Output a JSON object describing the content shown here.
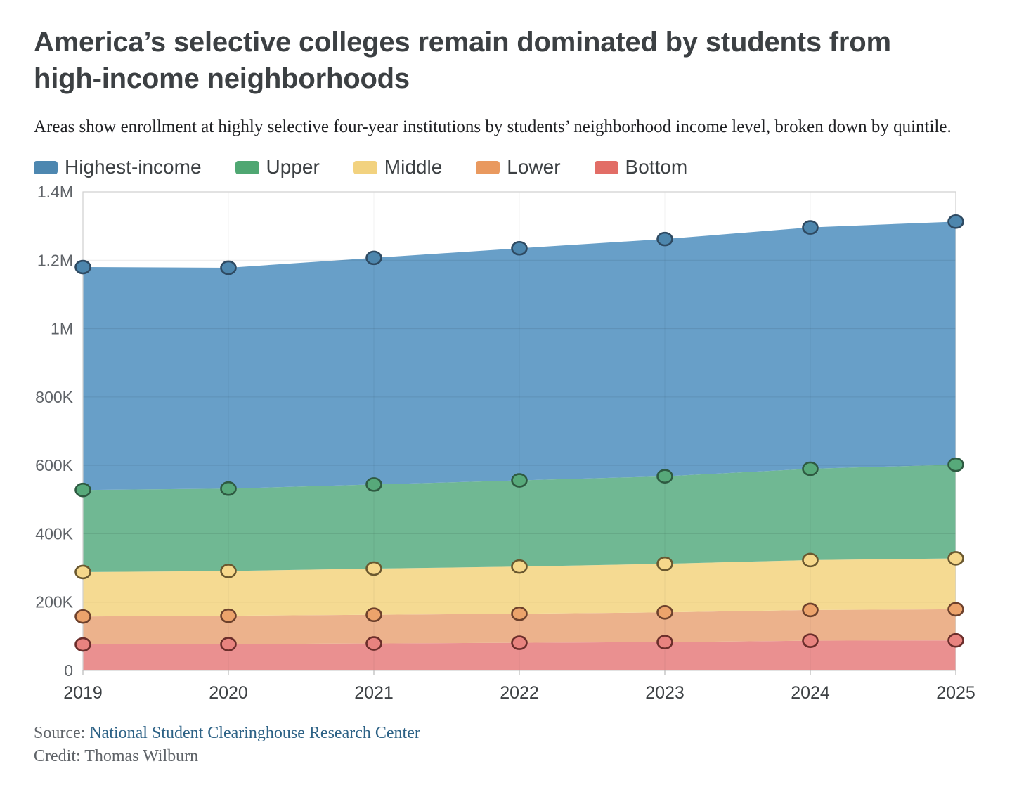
{
  "chart_data": {
    "type": "area",
    "stacked": true,
    "title": "America’s selective colleges remain dominated by students from high-income neighborhoods",
    "subtitle": "Areas show enrollment at highly selective four-year institutions by students’ neighborhood income level, broken down by quintile.",
    "x": [
      2019,
      2020,
      2021,
      2022,
      2023,
      2024,
      2025
    ],
    "series": [
      {
        "name": "Highest-income",
        "color": "#689fc8",
        "swatch": "#4d87b0",
        "dot_fill": "#4d86ad",
        "dot_stroke": "#2e4a62",
        "values": [
          652000,
          646000,
          663000,
          679000,
          694000,
          706000,
          711000
        ],
        "cumulative_top": [
          1180000,
          1178000,
          1207000,
          1235000,
          1262000,
          1296000,
          1313000
        ]
      },
      {
        "name": "Upper",
        "color": "#70b893",
        "swatch": "#4fa772",
        "dot_fill": "#57a97a",
        "dot_stroke": "#2e5a41",
        "values": [
          240000,
          241000,
          246000,
          252000,
          256000,
          267000,
          274000
        ],
        "cumulative_top": [
          528000,
          532000,
          544000,
          556000,
          568000,
          590000,
          602000
        ]
      },
      {
        "name": "Middle",
        "color": "#f5da92",
        "swatch": "#f2d27f",
        "dot_fill": "#f6d88b",
        "dot_stroke": "#6a582f",
        "values": [
          130000,
          131000,
          135000,
          138000,
          142000,
          146000,
          149000
        ],
        "cumulative_top": [
          288000,
          291000,
          298000,
          304000,
          312000,
          323000,
          328000
        ]
      },
      {
        "name": "Lower",
        "color": "#ecb28c",
        "swatch": "#e9995f",
        "dot_fill": "#eca36b",
        "dot_stroke": "#6d412c",
        "values": [
          82000,
          83000,
          84000,
          85000,
          87000,
          90000,
          91000
        ],
        "cumulative_top": [
          158000,
          160000,
          163000,
          166000,
          170000,
          177000,
          179000
        ]
      },
      {
        "name": "Bottom",
        "color": "#ea9090",
        "swatch": "#e26d66",
        "dot_fill": "#e8837f",
        "dot_stroke": "#6b2e2b",
        "values": [
          76000,
          77000,
          79000,
          81000,
          83000,
          87000,
          88000
        ],
        "cumulative_top": [
          76000,
          77000,
          79000,
          81000,
          83000,
          87000,
          88000
        ]
      }
    ],
    "y_ticks": [
      {
        "label": "0",
        "value": 0
      },
      {
        "label": "200K",
        "value": 200000
      },
      {
        "label": "400K",
        "value": 400000
      },
      {
        "label": "600K",
        "value": 600000
      },
      {
        "label": "800K",
        "value": 800000
      },
      {
        "label": "1M",
        "value": 1000000
      },
      {
        "label": "1.2M",
        "value": 1200000
      },
      {
        "label": "1.4M",
        "value": 1400000
      }
    ],
    "ylim": [
      0,
      1400000
    ],
    "xlabel": "",
    "ylabel": "",
    "grid": true,
    "legend_position": "top"
  },
  "footer": {
    "source_prefix": "Source: ",
    "source_link": "National Student Clearinghouse Research Center",
    "credit": "Credit: Thomas Wilburn"
  }
}
